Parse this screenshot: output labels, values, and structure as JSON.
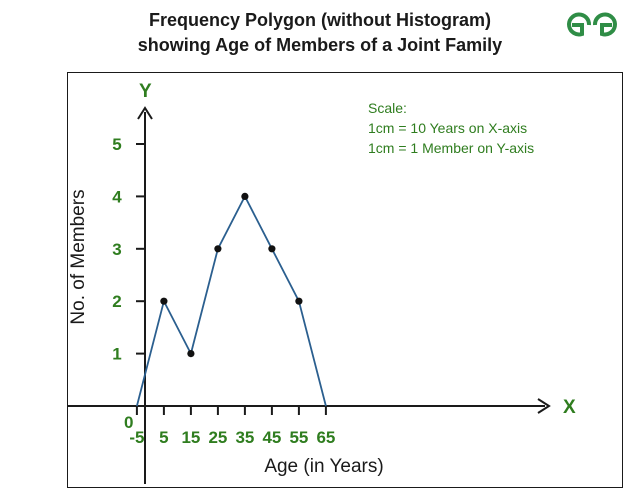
{
  "title_line1": "Frequency Polygon (without Histogram)",
  "title_line2": "showing Age of Members of a Joint Family",
  "logo_name": "geeksforgeeks-logo",
  "colors": {
    "accent": "#2f7d1f",
    "line": "#2b5f8f",
    "axis": "#1a1a1a"
  },
  "scale_note": {
    "heading": "Scale:",
    "line1": "1cm = 10 Years on X-axis",
    "line2": "1cm = 1 Member on Y-axis"
  },
  "chart_data": {
    "type": "line",
    "xlabel": "Age (in Years)",
    "ylabel": "No. of Members",
    "x_axis_letter": "X",
    "y_axis_letter": "Y",
    "origin_label": "0",
    "xticks": [
      "-5",
      "5",
      "15",
      "25",
      "35",
      "45",
      "55",
      "65"
    ],
    "yticks": [
      "1",
      "2",
      "3",
      "4",
      "5"
    ],
    "xlim": [
      -5,
      70
    ],
    "ylim": [
      0,
      5.7
    ],
    "grid": false,
    "series": [
      {
        "x": [
          -5,
          5,
          15,
          25,
          35,
          45,
          55,
          65
        ],
        "y": [
          0,
          2,
          1,
          3,
          4,
          3,
          2,
          0
        ]
      }
    ]
  }
}
